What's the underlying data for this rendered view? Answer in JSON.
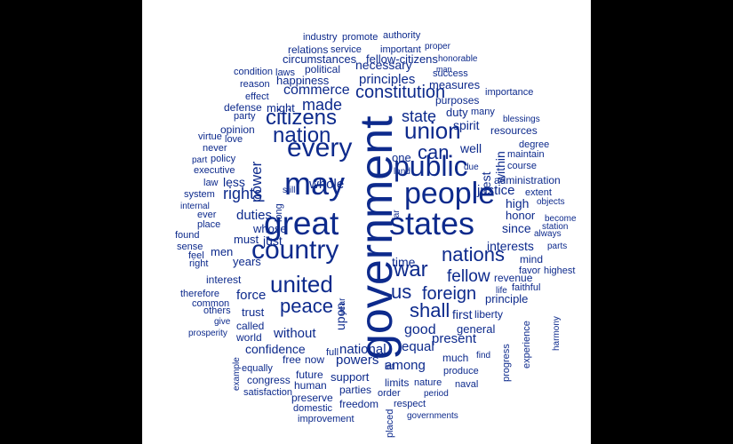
{
  "colors": {
    "word": "#0d2a8c",
    "background": "#ffffff",
    "border": "#000000"
  },
  "words": [
    {
      "text": "government",
      "vertical": true
    },
    {
      "text": "states"
    },
    {
      "text": "people"
    },
    {
      "text": "great"
    },
    {
      "text": "may"
    },
    {
      "text": "public"
    },
    {
      "text": "country"
    },
    {
      "text": "every"
    },
    {
      "text": "united"
    },
    {
      "text": "citizens"
    },
    {
      "text": "union"
    },
    {
      "text": "nation"
    },
    {
      "text": "constitution"
    },
    {
      "text": "war"
    },
    {
      "text": "nations"
    },
    {
      "text": "peace"
    },
    {
      "text": "us"
    },
    {
      "text": "foreign"
    },
    {
      "text": "can"
    },
    {
      "text": "shall"
    },
    {
      "text": "rights"
    },
    {
      "text": "state"
    },
    {
      "text": "made"
    },
    {
      "text": "power",
      "vertical": true
    },
    {
      "text": "fellow"
    },
    {
      "text": "commerce"
    },
    {
      "text": "principles"
    },
    {
      "text": "necessary"
    },
    {
      "text": "whole"
    },
    {
      "text": "duties"
    },
    {
      "text": "time"
    },
    {
      "text": "one"
    },
    {
      "text": "good"
    },
    {
      "text": "first"
    },
    {
      "text": "equal"
    },
    {
      "text": "general"
    },
    {
      "text": "present"
    },
    {
      "text": "force"
    },
    {
      "text": "confidence"
    },
    {
      "text": "national"
    },
    {
      "text": "powers"
    },
    {
      "text": "among"
    },
    {
      "text": "without"
    },
    {
      "text": "interests"
    },
    {
      "text": "justice"
    },
    {
      "text": "spirit"
    },
    {
      "text": "well"
    },
    {
      "text": "since"
    },
    {
      "text": "high"
    },
    {
      "text": "honor"
    },
    {
      "text": "principle"
    },
    {
      "text": "duty"
    },
    {
      "text": "happiness"
    },
    {
      "text": "political"
    },
    {
      "text": "measures"
    },
    {
      "text": "purposes"
    },
    {
      "text": "best",
      "vertical": true
    },
    {
      "text": "within",
      "vertical": true
    },
    {
      "text": "upon",
      "vertical": true
    },
    {
      "text": "administration"
    },
    {
      "text": "revenue"
    },
    {
      "text": "support"
    },
    {
      "text": "just"
    },
    {
      "text": "less"
    },
    {
      "text": "must"
    },
    {
      "text": "whose"
    },
    {
      "text": "might"
    },
    {
      "text": "years"
    },
    {
      "text": "men"
    },
    {
      "text": "trust"
    },
    {
      "text": "called"
    },
    {
      "text": "interest"
    },
    {
      "text": "liberty"
    },
    {
      "text": "mind"
    },
    {
      "text": "many"
    },
    {
      "text": "success"
    },
    {
      "text": "importance"
    },
    {
      "text": "resources"
    },
    {
      "text": "maintain"
    },
    {
      "text": "course"
    },
    {
      "text": "extent"
    },
    {
      "text": "degree"
    },
    {
      "text": "objects"
    },
    {
      "text": "become"
    },
    {
      "text": "station"
    },
    {
      "text": "always"
    },
    {
      "text": "parts"
    },
    {
      "text": "highest"
    },
    {
      "text": "favor"
    },
    {
      "text": "faithful"
    },
    {
      "text": "life"
    },
    {
      "text": "experience",
      "vertical": true
    },
    {
      "text": "harmony",
      "vertical": true
    },
    {
      "text": "progress",
      "vertical": true
    },
    {
      "text": "find"
    },
    {
      "text": "naval"
    },
    {
      "text": "produce"
    },
    {
      "text": "period"
    },
    {
      "text": "nature"
    },
    {
      "text": "limits"
    },
    {
      "text": "much"
    },
    {
      "text": "respect"
    },
    {
      "text": "governments"
    },
    {
      "text": "order"
    },
    {
      "text": "placed",
      "vertical": true
    },
    {
      "text": "let"
    },
    {
      "text": "parties"
    },
    {
      "text": "freedom"
    },
    {
      "text": "preserve"
    },
    {
      "text": "human"
    },
    {
      "text": "future"
    },
    {
      "text": "domestic"
    },
    {
      "text": "improvement"
    },
    {
      "text": "satisfaction"
    },
    {
      "text": "congress"
    },
    {
      "text": "equally"
    },
    {
      "text": "free"
    },
    {
      "text": "now"
    },
    {
      "text": "full"
    },
    {
      "text": "example",
      "vertical": true
    },
    {
      "text": "world"
    },
    {
      "text": "prosperity"
    },
    {
      "text": "give"
    },
    {
      "text": "others"
    },
    {
      "text": "common"
    },
    {
      "text": "therefore"
    },
    {
      "text": "right"
    },
    {
      "text": "feel"
    },
    {
      "text": "sense"
    },
    {
      "text": "found"
    },
    {
      "text": "place"
    },
    {
      "text": "ever"
    },
    {
      "text": "internal"
    },
    {
      "text": "system"
    },
    {
      "text": "law"
    },
    {
      "text": "executive"
    },
    {
      "text": "policy"
    },
    {
      "text": "part"
    },
    {
      "text": "never"
    },
    {
      "text": "love"
    },
    {
      "text": "virtue"
    },
    {
      "text": "opinion"
    },
    {
      "text": "party"
    },
    {
      "text": "defense"
    },
    {
      "text": "effect"
    },
    {
      "text": "reason"
    },
    {
      "text": "condition"
    },
    {
      "text": "laws"
    },
    {
      "text": "circumstances"
    },
    {
      "text": "fellow-citizens"
    },
    {
      "text": "relations"
    },
    {
      "text": "service"
    },
    {
      "text": "important"
    },
    {
      "text": "industry"
    },
    {
      "text": "promote"
    },
    {
      "text": "authority"
    },
    {
      "text": "proper"
    },
    {
      "text": "honorable"
    },
    {
      "text": "man"
    },
    {
      "text": "blessings"
    },
    {
      "text": "still"
    },
    {
      "text": "long",
      "vertical": true
    },
    {
      "text": "far",
      "vertical": true
    },
    {
      "text": "due"
    },
    {
      "text": "land"
    },
    {
      "text": "year",
      "vertical": true
    }
  ]
}
